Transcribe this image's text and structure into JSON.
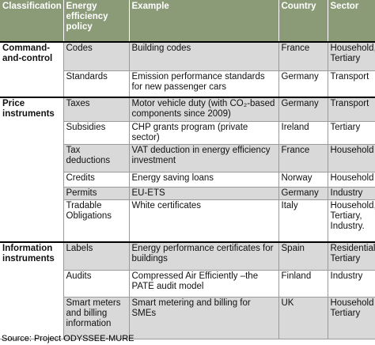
{
  "table": {
    "columns": [
      "Classification",
      "Energy efficiency policy",
      "Example",
      "Country",
      "Sector"
    ],
    "groups": [
      {
        "classification": "Command-and-control",
        "rows": [
          [
            "Codes",
            "Building codes",
            "France",
            "Household, Tertiary"
          ],
          [
            "Standards",
            "Emission performance standards for new passenger cars",
            "Germany",
            "Transport"
          ]
        ]
      },
      {
        "classification": "Price instruments",
        "rows": [
          [
            "Taxes",
            "Motor vehicle duty (with CO₂-based components since 2009)",
            "Germany",
            "Transport"
          ],
          [
            "Subsidies",
            "CHP grants program (private sector)",
            "Ireland",
            "Tertiary"
          ],
          [
            "Tax deductions",
            "VAT deduction in energy efficiency investment",
            "France",
            "Household"
          ],
          [
            "Credits",
            "Energy saving loans",
            "Norway",
            "Household"
          ],
          [
            "Permits",
            "EU-ETS",
            "Germany",
            "Industry"
          ],
          [
            "Tradable Obligations",
            "White certificates",
            "Italy",
            "Household, Tertiary, Industry."
          ]
        ]
      },
      {
        "classification": "Information instruments",
        "rows": [
          [
            "Labels",
            "Energy performance certificates for buildings",
            "Spain",
            "Residential, Tertiary"
          ],
          [
            "Audits",
            "Compressed Air Efficiently –the PATE audit model",
            "Finland",
            "Industry"
          ],
          [
            "Smart meters and billing information",
            "Smart metering and billing for SMEs",
            "UK",
            "Household Tertiary"
          ]
        ]
      }
    ]
  },
  "source": "Source: Project ODYSSEE-MURE"
}
